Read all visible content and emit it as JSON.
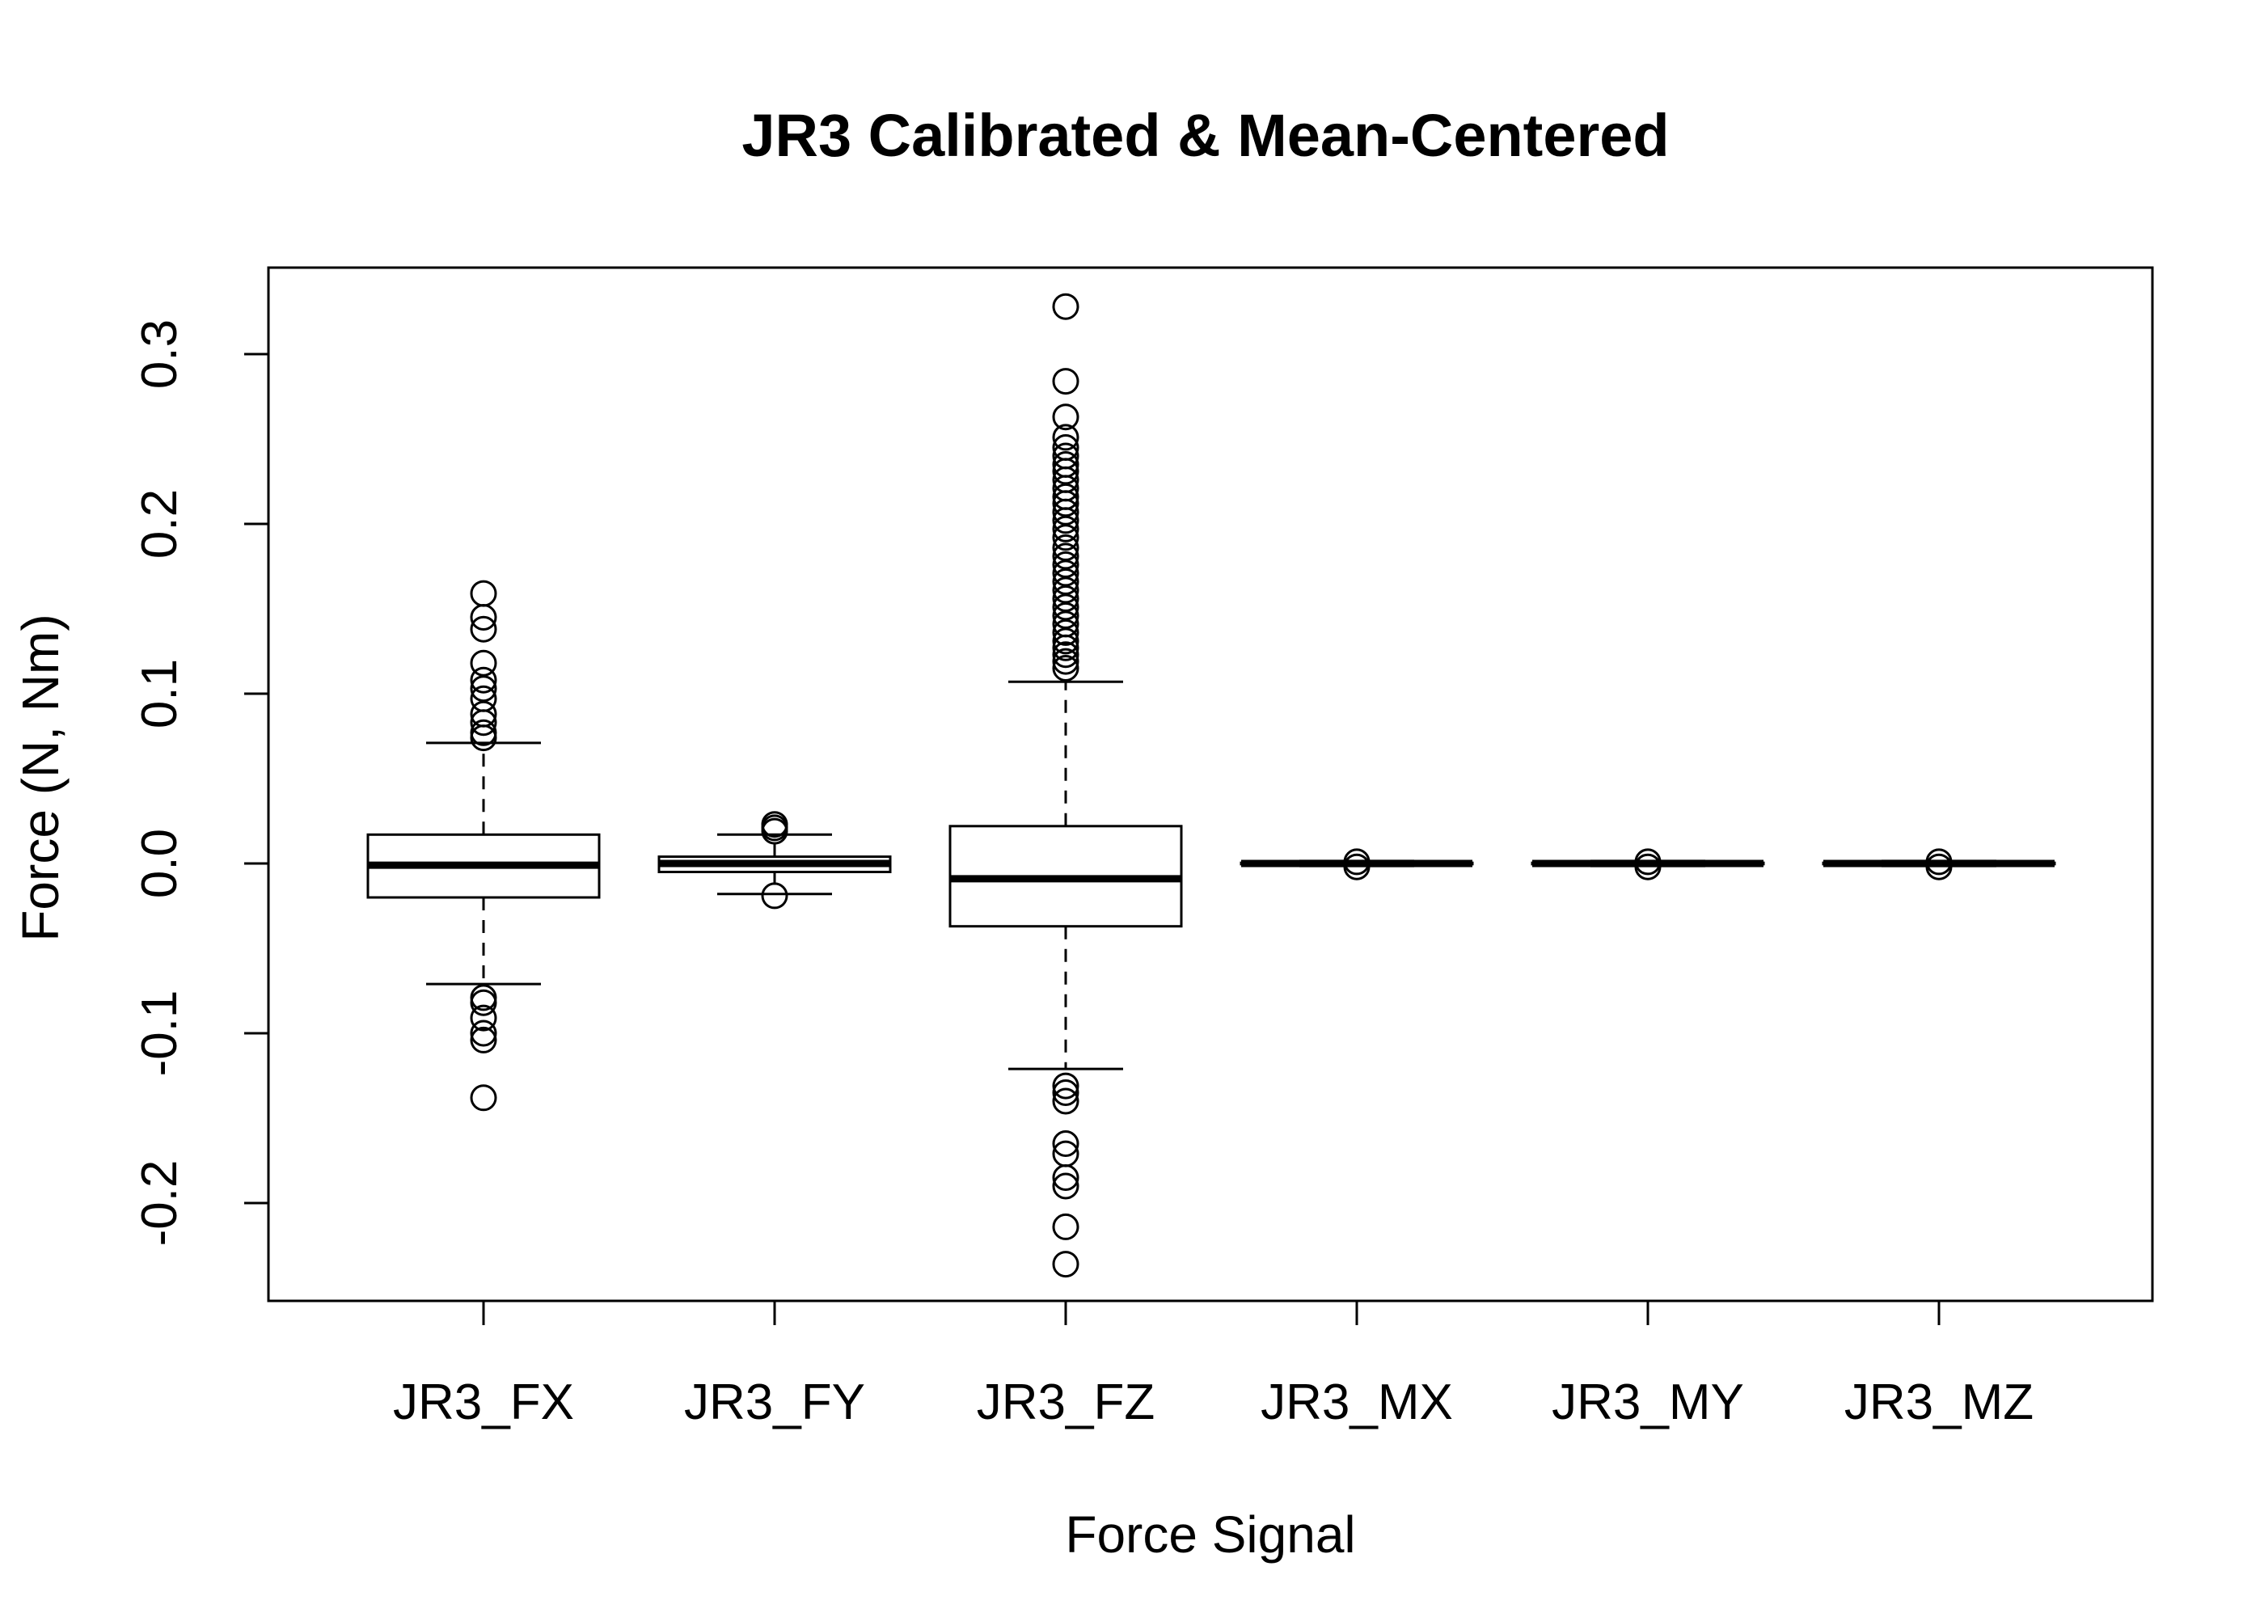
{
  "chart_data": {
    "type": "boxplot",
    "title": "JR3 Calibrated & Mean-Centered",
    "xlabel": "Force Signal",
    "ylabel": "Force (N, Nm)",
    "ylim": [
      -0.26,
      0.35
    ],
    "yticks": [
      -0.2,
      -0.1,
      0.0,
      0.1,
      0.2,
      0.3
    ],
    "ytick_labels": [
      "-0.2",
      "-0.1",
      "0.0",
      "0.1",
      "0.2",
      "0.3"
    ],
    "grid": false,
    "legend": "none",
    "categories": [
      "JR3_FX",
      "JR3_FY",
      "JR3_FZ",
      "JR3_MX",
      "JR3_MY",
      "JR3_MZ"
    ],
    "boxes": [
      {
        "name": "JR3_FX",
        "whisker_low": -0.071,
        "q1": -0.02,
        "median": -0.001,
        "q3": 0.017,
        "whisker_high": 0.071,
        "outliers": [
          0.159,
          0.145,
          0.138,
          0.118,
          0.108,
          0.103,
          0.097,
          0.088,
          0.083,
          0.077,
          0.074,
          -0.079,
          -0.082,
          -0.091,
          -0.1,
          -0.104,
          -0.138
        ]
      },
      {
        "name": "JR3_FY",
        "whisker_low": -0.018,
        "q1": -0.005,
        "median": 0.0,
        "q3": 0.004,
        "whisker_high": 0.017,
        "outliers": [
          0.023,
          0.021,
          0.019,
          -0.019
        ]
      },
      {
        "name": "JR3_FZ",
        "whisker_low": -0.121,
        "q1": -0.037,
        "median": -0.009,
        "q3": 0.022,
        "whisker_high": 0.107,
        "outliers": [
          0.328,
          0.284,
          0.263,
          0.251,
          0.245,
          0.24,
          0.235,
          0.231,
          0.226,
          0.221,
          0.216,
          0.212,
          0.207,
          0.202,
          0.197,
          0.192,
          0.186,
          0.181,
          0.176,
          0.171,
          0.166,
          0.161,
          0.156,
          0.151,
          0.146,
          0.141,
          0.136,
          0.131,
          0.127,
          0.123,
          0.119,
          0.115,
          -0.131,
          -0.135,
          -0.14,
          -0.165,
          -0.171,
          -0.185,
          -0.19,
          -0.214,
          -0.236
        ]
      },
      {
        "name": "JR3_MX",
        "whisker_low": -0.0015,
        "q1": -0.0004,
        "median": 0.0,
        "q3": 0.0004,
        "whisker_high": 0.0015,
        "outliers": [
          0.001,
          -0.002
        ]
      },
      {
        "name": "JR3_MY",
        "whisker_low": -0.0015,
        "q1": -0.0004,
        "median": 0.0,
        "q3": 0.0004,
        "whisker_high": 0.0015,
        "outliers": [
          0.001,
          -0.002
        ]
      },
      {
        "name": "JR3_MZ",
        "whisker_low": -0.0015,
        "q1": -0.0004,
        "median": 0.0,
        "q3": 0.0004,
        "whisker_high": 0.0015,
        "outliers": [
          0.001,
          -0.002
        ]
      }
    ]
  }
}
